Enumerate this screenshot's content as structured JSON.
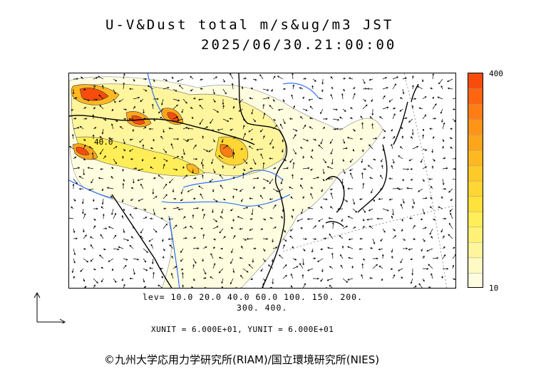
{
  "title": {
    "line1": "U-V&Dust total m/s&ug/m3 JST",
    "line2": "2025/06/30.21:00:00"
  },
  "colorbar": {
    "max_label": "400",
    "min_label": "10",
    "colors": [
      "#fffde0",
      "#fff9c4",
      "#fff59d",
      "#fff176",
      "#ffee58",
      "#ffe23a",
      "#ffd633",
      "#ffc928",
      "#ffb820",
      "#ffa51c",
      "#ff9418",
      "#ff7d14",
      "#ff6410",
      "#f84c0c"
    ]
  },
  "contour_label": "40.0",
  "legend": {
    "levels_line1": "lev= 10.0 20.0 40.0 60.0 100. 150. 200.",
    "levels_line2": "300. 400.",
    "units": "XUNIT = 6.000E+01, YUNIT = 6.000E+01"
  },
  "copyright": "©九州大学応用力学研究所(RIAM)/国立環境研究所(NIES)",
  "icons": {
    "axes": "axes-arrows-icon"
  }
}
